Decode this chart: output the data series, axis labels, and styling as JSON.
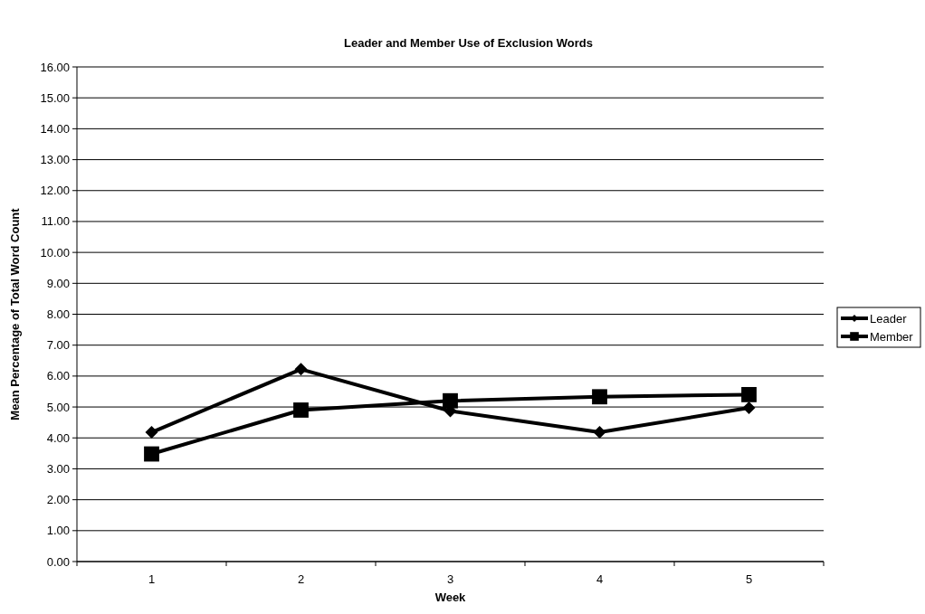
{
  "chart_data": {
    "type": "line",
    "title": "Leader and Member Use of Exclusion Words",
    "xlabel": "Week",
    "ylabel": "Mean Percentage of Total Word Count",
    "categories": [
      "1",
      "2",
      "3",
      "4",
      "5"
    ],
    "series": [
      {
        "name": "Leader",
        "color": "#000000",
        "marker": "diamond",
        "values": [
          4.18,
          6.22,
          4.87,
          4.18,
          4.97
        ]
      },
      {
        "name": "Member",
        "color": "#000000",
        "marker": "square",
        "values": [
          3.48,
          4.9,
          5.2,
          5.33,
          5.4
        ]
      }
    ],
    "ylim": [
      0,
      16
    ],
    "yticks": [
      {
        "value": 0,
        "label": "0.00"
      },
      {
        "value": 1,
        "label": "1.00"
      },
      {
        "value": 2,
        "label": "2.00"
      },
      {
        "value": 3,
        "label": "3.00"
      },
      {
        "value": 4,
        "label": "4.00"
      },
      {
        "value": 5,
        "label": "5.00"
      },
      {
        "value": 6,
        "label": "6.00"
      },
      {
        "value": 7,
        "label": "7.00"
      },
      {
        "value": 8,
        "label": "8.00"
      },
      {
        "value": 9,
        "label": "9.00"
      },
      {
        "value": 10,
        "label": "10.00"
      },
      {
        "value": 11,
        "label": "11.00"
      },
      {
        "value": 12,
        "label": "12.00"
      },
      {
        "value": 13,
        "label": "13.00"
      },
      {
        "value": 14,
        "label": "14.00"
      },
      {
        "value": 15,
        "label": "15.00"
      },
      {
        "value": 16,
        "label": "16.00"
      }
    ],
    "grid": "y",
    "legend": "right",
    "line_style": "solid"
  }
}
